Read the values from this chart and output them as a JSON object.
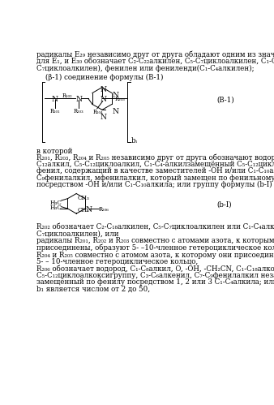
{
  "bg_color": "#ffffff",
  "text_color": "#000000",
  "font_size": 6.2,
  "fig_width": 3.38,
  "fig_height": 4.99,
  "dpi": 100,
  "line1": "радикалы E₂₉ независимо друг от друга обладают одним из значений, указанных",
  "line2": "для E₁, и E₃₀ обозначает C₂-C₂₂алкилен, C₅-C₇циклоалкилен, C₁-C₄алкиленди(C₅-",
  "line3": "C₇циклоалкилен), фенилен или фениленди(C₁-C₄алкилен);",
  "beta_line": "(β-1) соединение формулы (B-1)",
  "B1_label": "(B-1)",
  "bI_label": "(b-I)",
  "v_kotoroj": "в которой",
  "r201_line": "R₂₀₁, R₂₀₃, R₂₀₄ и R₂₀₅ независимо друг от друга обозначают водород, C₁-",
  "c12_line": "C₁₂алкил, C₅-C₁₂циклоалкил, C₁-C₄-алкилзамещённый C₅-C₁₂циклоалкил, фенил,",
  "fenyl_line": "фенил, содержащий в качестве заместителей -OH и/или C₁-C₁₀алкил; C₇-",
  "c9_line": "C₉фенилалкил, мфенилалкил, который замещен по фенильному радикалу",
  "posred_line": "посредством -OH и/или C₁-C₁₀алкила; или группу формулы (b-I)",
  "r202_line": "R₂₀₂ обозначает C₂-C₁₈алкилен, C₅-C₇циклоалкилен или C₁-C₄алкиленди(C₅-",
  "c7_line": "C₇циклоалкилен), или",
  "rad_line": "радикалы R₂₀₁, R₂₀₂ и R₂₀₃ совместно с атомами азота, к которым они",
  "pris_line": "присоединены, образуют 5- –10-членное гетероциклическое кольцо, или",
  "r204_line": "R₂₀₄ и R₂₀₅ совместно с атомом азота, к которому они присоединены, образуют",
  "5_line": "5- – 10-членное гетероциклическое кольцо,",
  "r206_line": "R₂₀₆ обозначает водород, C₁-C₈алкил, O, -OH, -CH₂CN, C₁-C₁₈алкоксигруппу,",
  "c5_line": "C₅-C₁₂циклоалкоксигруппу, C₃-C₆алкенил, C₇-C₉фенилалкил незамещённый или",
  "zam_line": "замещённый по фенилу посредством 1, 2 или 3 C₁-C₄алкила; или C₁-C₈ацил, и",
  "b1_line": "b₁ является числом от 2 до 50,"
}
